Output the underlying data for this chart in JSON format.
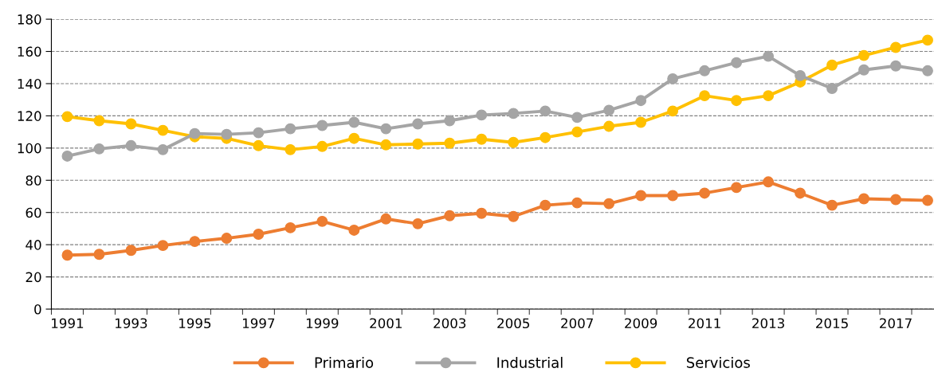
{
  "chart_data": {
    "type": "line",
    "categories": [
      "1991",
      null,
      "1993",
      null,
      "1995",
      null,
      "1997",
      null,
      "1999",
      null,
      "2001",
      null,
      "2003",
      null,
      "2005",
      null,
      "2007",
      null,
      "2009",
      null,
      "2011",
      null,
      "2013",
      null,
      "2015",
      null,
      "2017",
      null
    ],
    "series": [
      {
        "name": "Primario",
        "color": "#ed7d31",
        "values": [
          33.5,
          34,
          36.5,
          39.5,
          42,
          44,
          46.5,
          50.5,
          54.5,
          49,
          56,
          53,
          58,
          59.5,
          57.5,
          64.5,
          66,
          65.5,
          70.5,
          70.5,
          72,
          75.5,
          79,
          72,
          64.5,
          68.5,
          68,
          67.5
        ]
      },
      {
        "name": "Industrial",
        "color": "#a5a5a5",
        "values": [
          95,
          99.5,
          101.5,
          99,
          109,
          108.5,
          109.5,
          112,
          114,
          116,
          112,
          115,
          117,
          120.5,
          121.5,
          123,
          119,
          123.5,
          129.5,
          143,
          148,
          153,
          157,
          145,
          137,
          148.5,
          151,
          148
        ]
      },
      {
        "name": "Servicios",
        "color": "#ffc000",
        "values": [
          119.5,
          117,
          115,
          111,
          107,
          106,
          101.5,
          99,
          101,
          106,
          102,
          102.5,
          103,
          105.5,
          103.5,
          106.5,
          110,
          113.5,
          116,
          123,
          132.5,
          129.5,
          132.5,
          141,
          151.5,
          157.5,
          162.5,
          167
        ]
      }
    ],
    "ylim": [
      0,
      180
    ],
    "yticks": [
      0,
      20,
      40,
      60,
      80,
      100,
      120,
      140,
      160,
      180
    ],
    "grid": "y",
    "legend": "bottom",
    "marker": "circle",
    "line_style": "solid"
  }
}
